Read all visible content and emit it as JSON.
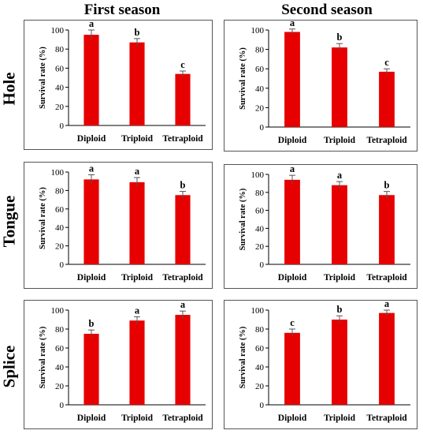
{
  "column_titles": [
    "First season",
    "Second season"
  ],
  "row_titles": [
    "Hole",
    "Tongue",
    "Splice"
  ],
  "colors": {
    "bar": "#e60000",
    "axis": "#000000",
    "frame": "#555555"
  },
  "chart_data": [
    {
      "type": "bar",
      "row": "Hole",
      "season": "First season",
      "categories": [
        "Diploid",
        "Triploid",
        "Tetraploid"
      ],
      "values": [
        95,
        87,
        54
      ],
      "errors": [
        5,
        4,
        3
      ],
      "letters": [
        "a",
        "b",
        "c"
      ],
      "ylabel": "Survival rate (%)",
      "ylim": [
        0,
        100
      ],
      "yticks": [
        0,
        20,
        40,
        60,
        80,
        100
      ]
    },
    {
      "type": "bar",
      "row": "Hole",
      "season": "Second season",
      "categories": [
        "Diploid",
        "Triploid",
        "Tetraploid"
      ],
      "values": [
        98,
        82,
        57
      ],
      "errors": [
        3,
        4,
        3
      ],
      "letters": [
        "a",
        "b",
        "c"
      ],
      "ylabel": "Survival rate (%)",
      "ylim": [
        0,
        100
      ],
      "yticks": [
        0,
        20,
        40,
        60,
        80,
        100
      ]
    },
    {
      "type": "bar",
      "row": "Tongue",
      "season": "First season",
      "categories": [
        "Diploid",
        "Triploid",
        "Tetraploid"
      ],
      "values": [
        92,
        89,
        75
      ],
      "errors": [
        5,
        5,
        4
      ],
      "letters": [
        "a",
        "a",
        "b"
      ],
      "ylabel": "Survival rate (%)",
      "ylim": [
        0,
        100
      ],
      "yticks": [
        0,
        20,
        40,
        60,
        80,
        100
      ]
    },
    {
      "type": "bar",
      "row": "Tongue",
      "season": "Second season",
      "categories": [
        "Diploid",
        "Triploid",
        "Tetraploid"
      ],
      "values": [
        94,
        88,
        77
      ],
      "errors": [
        5,
        4,
        4
      ],
      "letters": [
        "a",
        "a",
        "b"
      ],
      "ylabel": "Survival rate (%)",
      "ylim": [
        0,
        100
      ],
      "yticks": [
        0,
        20,
        40,
        60,
        80,
        100
      ]
    },
    {
      "type": "bar",
      "row": "Splice",
      "season": "First season",
      "categories": [
        "Diploid",
        "Triploid",
        "Tetraploid"
      ],
      "values": [
        75,
        89,
        95
      ],
      "errors": [
        4,
        4,
        4
      ],
      "letters": [
        "b",
        "a",
        "a"
      ],
      "ylabel": "Survival rate (%)",
      "ylim": [
        0,
        100
      ],
      "yticks": [
        0,
        20,
        40,
        60,
        80,
        100
      ]
    },
    {
      "type": "bar",
      "row": "Splice",
      "season": "Second season",
      "categories": [
        "Diploid",
        "Triploid",
        "Tetraploid"
      ],
      "values": [
        76,
        90,
        97
      ],
      "errors": [
        4,
        4,
        3
      ],
      "letters": [
        "c",
        "b",
        "a"
      ],
      "ylabel": "Survival rate (%)",
      "ylim": [
        0,
        100
      ],
      "yticks": [
        0,
        20,
        40,
        60,
        80,
        100
      ]
    }
  ]
}
